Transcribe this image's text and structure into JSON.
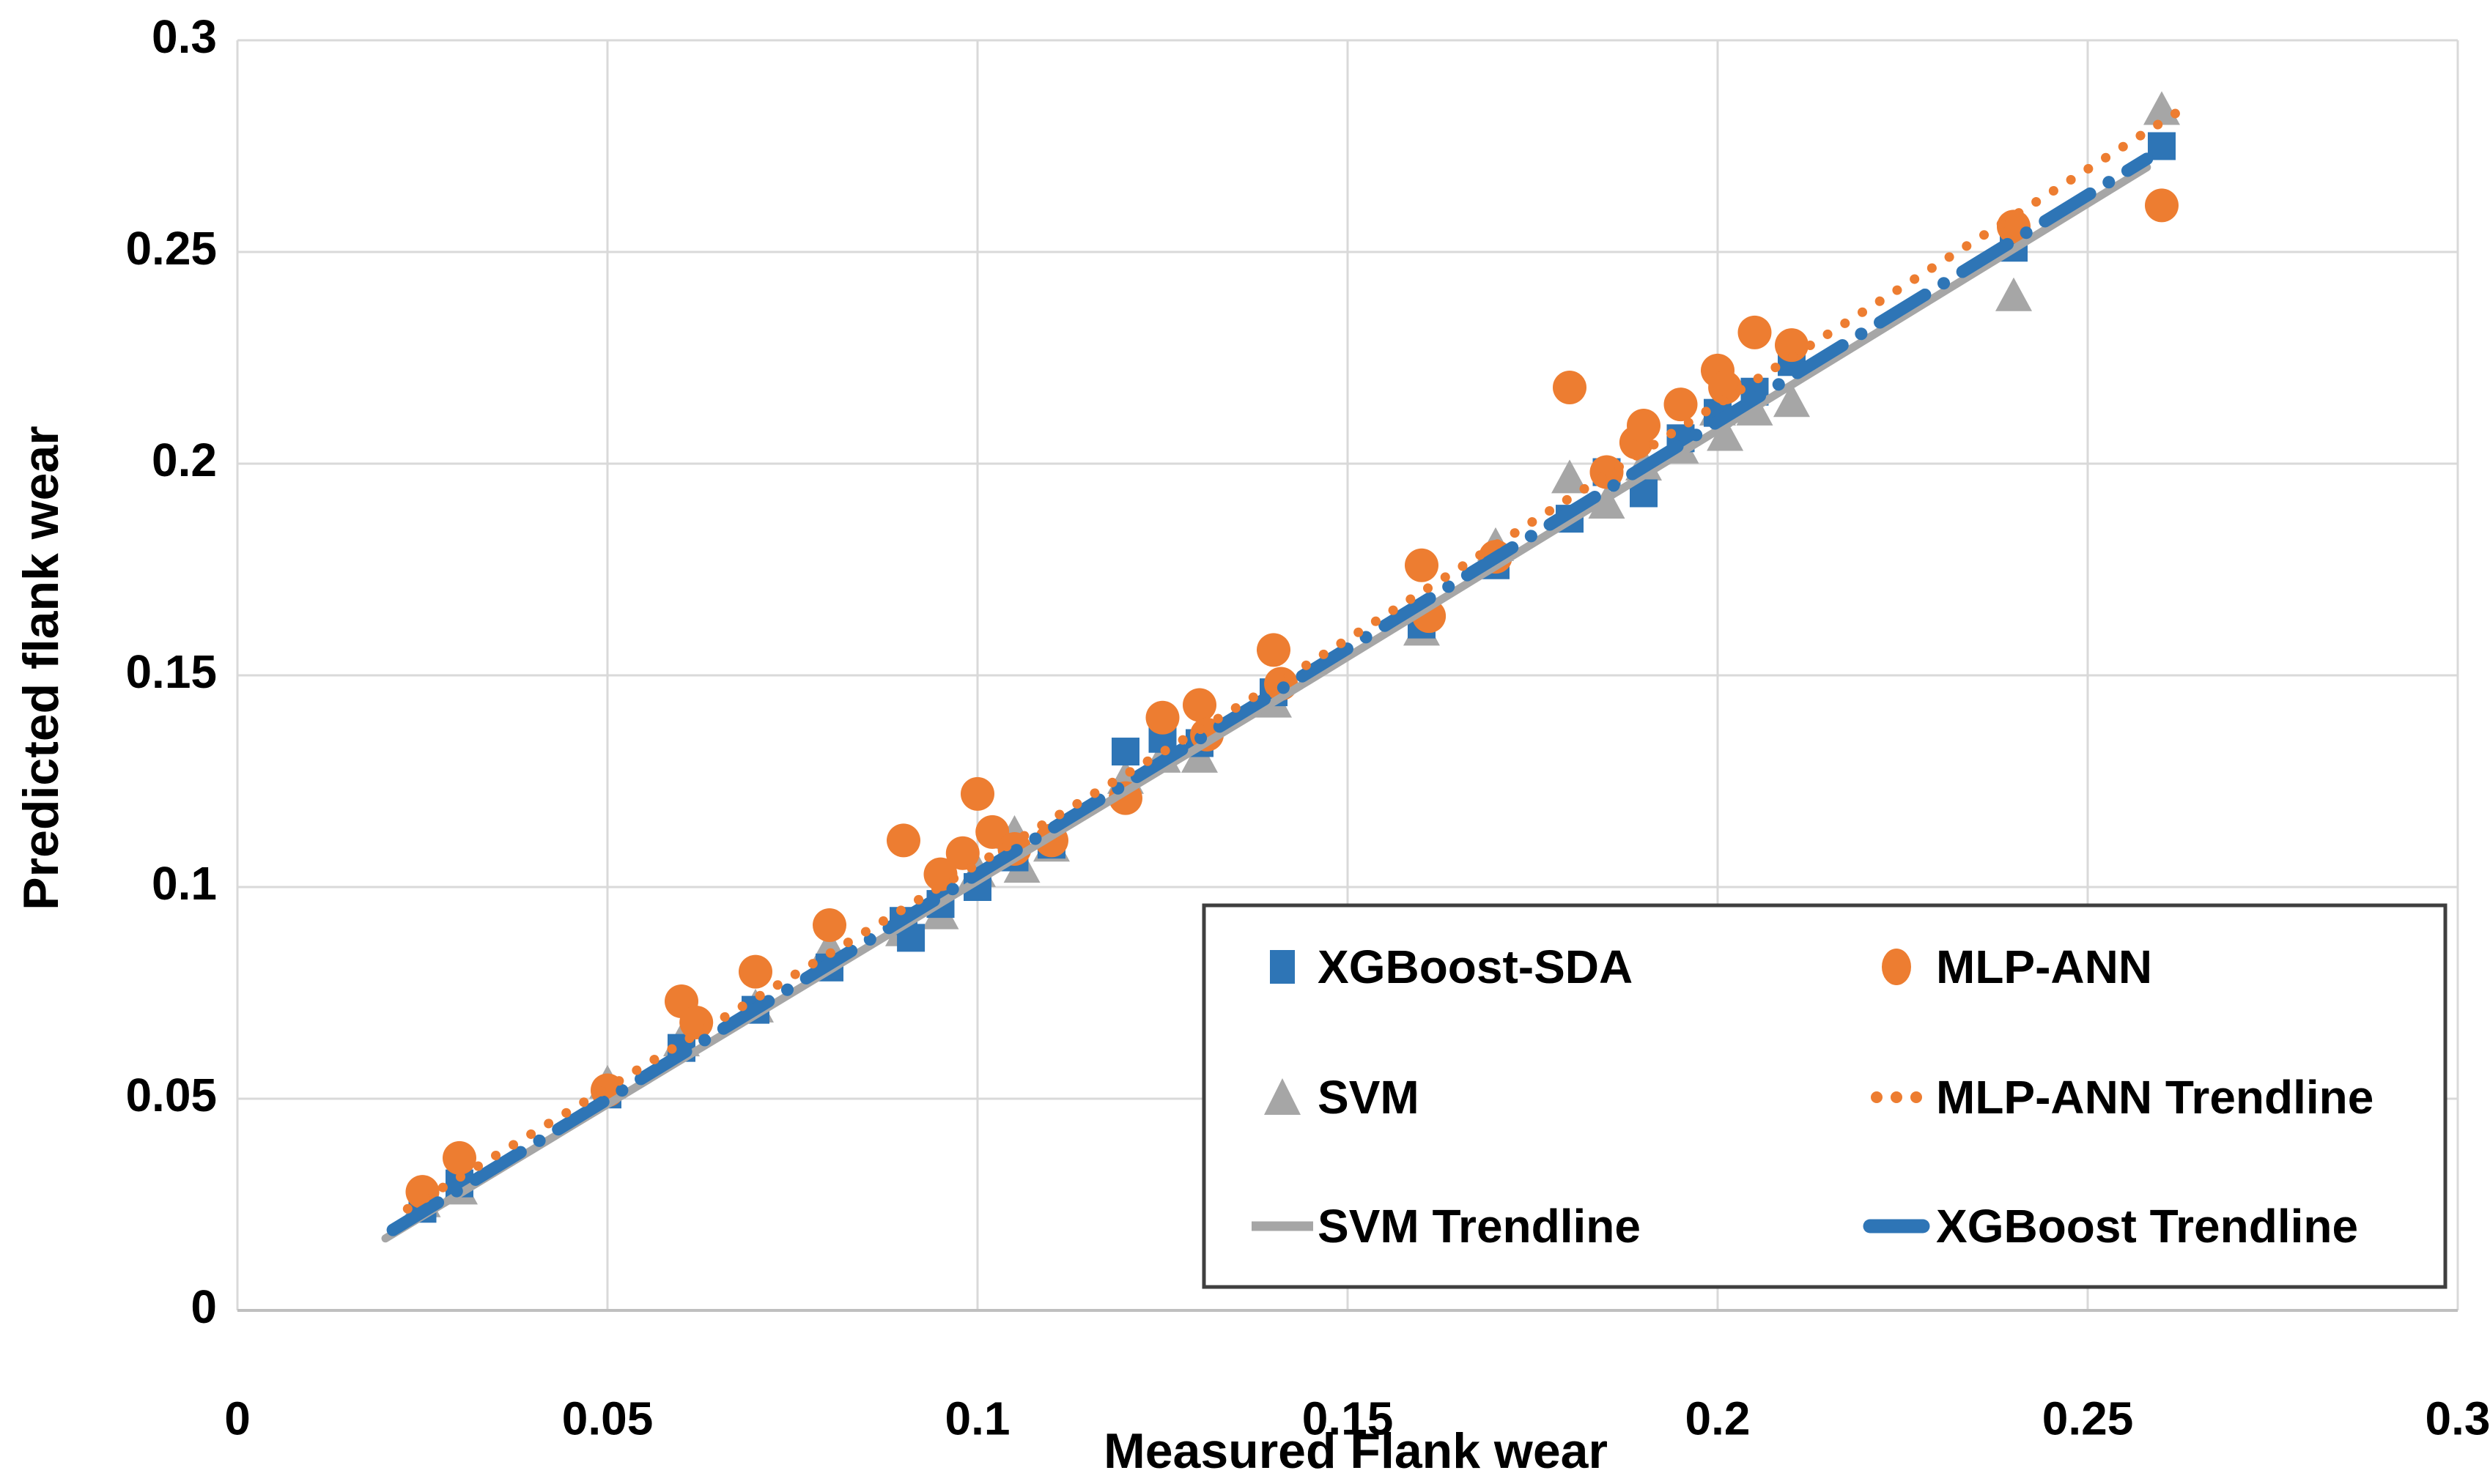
{
  "axes": {
    "x_title": "Measured Flank wear",
    "y_title": "Predicted flank wear",
    "x_ticks": [
      "0",
      "0.05",
      "0.1",
      "0.15",
      "0.2",
      "0.25",
      "0.3"
    ],
    "y_ticks": [
      "0",
      "0.05",
      "0.1",
      "0.15",
      "0.2",
      "0.25",
      "0.3"
    ]
  },
  "legend": {
    "items": [
      {
        "id": "xgboost-sda",
        "label": "XGBoost-SDA",
        "marker": "square",
        "color": "#2E75B6",
        "col": 0,
        "row": 0
      },
      {
        "id": "mlp-ann",
        "label": "MLP-ANN",
        "marker": "circle",
        "color": "#ED7D31",
        "col": 1,
        "row": 0
      },
      {
        "id": "svm",
        "label": "SVM",
        "marker": "triangle",
        "color": "#A6A6A6",
        "col": 0,
        "row": 1
      },
      {
        "id": "mlp-ann-trendline",
        "label": "MLP-ANN Trendline",
        "marker": "dotted-line",
        "color": "#ED7D31",
        "col": 1,
        "row": 1
      },
      {
        "id": "svm-trendline",
        "label": "SVM Trendline",
        "marker": "solid-line",
        "color": "#A6A6A6",
        "col": 0,
        "row": 2
      },
      {
        "id": "xgboost-trendline",
        "label": "XGBoost Trendline",
        "marker": "dash-line",
        "color": "#2E75B6",
        "col": 1,
        "row": 2
      }
    ]
  },
  "colors": {
    "blue": "#2E75B6",
    "orange": "#ED7D31",
    "gray": "#A6A6A6",
    "gridline": "#D9D9D9",
    "axis_line": "#BFBFBF",
    "legend_border": "#3F3F3F",
    "text": "#000000"
  },
  "chart_data": {
    "type": "scatter",
    "xlabel": "Measured Flank wear",
    "ylabel": "Predicted flank wear",
    "xlim": [
      0,
      0.3
    ],
    "ylim": [
      0,
      0.3
    ],
    "tick_step": 0.05,
    "grid": true,
    "legend_position": "inside-bottom-right",
    "series": [
      {
        "id": "svm",
        "name": "SVM",
        "marker": "triangle",
        "color": "#A6A6A6",
        "points": [
          [
            0.025,
            0.026
          ],
          [
            0.03,
            0.029
          ],
          [
            0.05,
            0.054
          ],
          [
            0.06,
            0.064
          ],
          [
            0.07,
            0.072
          ],
          [
            0.08,
            0.086
          ],
          [
            0.09,
            0.09
          ],
          [
            0.095,
            0.094
          ],
          [
            0.1,
            0.104
          ],
          [
            0.105,
            0.113
          ],
          [
            0.106,
            0.105
          ],
          [
            0.11,
            0.11
          ],
          [
            0.12,
            0.126
          ],
          [
            0.125,
            0.131
          ],
          [
            0.13,
            0.131
          ],
          [
            0.14,
            0.144
          ],
          [
            0.16,
            0.161
          ],
          [
            0.17,
            0.181
          ],
          [
            0.18,
            0.197
          ],
          [
            0.185,
            0.191
          ],
          [
            0.19,
            0.2
          ],
          [
            0.195,
            0.204
          ],
          [
            0.2,
            0.213
          ],
          [
            0.201,
            0.207
          ],
          [
            0.205,
            0.213
          ],
          [
            0.21,
            0.215
          ],
          [
            0.24,
            0.24
          ],
          [
            0.26,
            0.284
          ]
        ]
      },
      {
        "id": "xgboost-sda",
        "name": "XGBoost-SDA",
        "marker": "square",
        "color": "#2E75B6",
        "points": [
          [
            0.025,
            0.024
          ],
          [
            0.03,
            0.03
          ],
          [
            0.05,
            0.051
          ],
          [
            0.06,
            0.062
          ],
          [
            0.07,
            0.071
          ],
          [
            0.08,
            0.081
          ],
          [
            0.09,
            0.092
          ],
          [
            0.091,
            0.088
          ],
          [
            0.095,
            0.096
          ],
          [
            0.1,
            0.1
          ],
          [
            0.105,
            0.107
          ],
          [
            0.11,
            0.11
          ],
          [
            0.12,
            0.132
          ],
          [
            0.125,
            0.135
          ],
          [
            0.13,
            0.134
          ],
          [
            0.14,
            0.146
          ],
          [
            0.16,
            0.162
          ],
          [
            0.17,
            0.176
          ],
          [
            0.18,
            0.187
          ],
          [
            0.185,
            0.198
          ],
          [
            0.19,
            0.193
          ],
          [
            0.195,
            0.206
          ],
          [
            0.2,
            0.212
          ],
          [
            0.205,
            0.217
          ],
          [
            0.21,
            0.224
          ],
          [
            0.24,
            0.251
          ],
          [
            0.26,
            0.275
          ]
        ]
      },
      {
        "id": "mlp-ann",
        "name": "MLP-ANN",
        "marker": "circle",
        "color": "#ED7D31",
        "points": [
          [
            0.025,
            0.028
          ],
          [
            0.03,
            0.036
          ],
          [
            0.05,
            0.052
          ],
          [
            0.06,
            0.073
          ],
          [
            0.062,
            0.068
          ],
          [
            0.07,
            0.08
          ],
          [
            0.08,
            0.091
          ],
          [
            0.09,
            0.111
          ],
          [
            0.095,
            0.103
          ],
          [
            0.098,
            0.108
          ],
          [
            0.1,
            0.122
          ],
          [
            0.102,
            0.113
          ],
          [
            0.105,
            0.109
          ],
          [
            0.11,
            0.111
          ],
          [
            0.12,
            0.121
          ],
          [
            0.125,
            0.14
          ],
          [
            0.13,
            0.143
          ],
          [
            0.131,
            0.136
          ],
          [
            0.14,
            0.156
          ],
          [
            0.141,
            0.148
          ],
          [
            0.16,
            0.176
          ],
          [
            0.161,
            0.164
          ],
          [
            0.17,
            0.178
          ],
          [
            0.18,
            0.218
          ],
          [
            0.185,
            0.198
          ],
          [
            0.189,
            0.205
          ],
          [
            0.19,
            0.209
          ],
          [
            0.195,
            0.214
          ],
          [
            0.2,
            0.222
          ],
          [
            0.201,
            0.218
          ],
          [
            0.205,
            0.231
          ],
          [
            0.21,
            0.228
          ],
          [
            0.24,
            0.256
          ],
          [
            0.26,
            0.261
          ]
        ]
      }
    ],
    "trendlines": [
      {
        "id": "svm-trendline",
        "name": "SVM Trendline",
        "color": "#A6A6A6",
        "style": "solid",
        "width": 11,
        "points": [
          [
            0.02,
            0.017
          ],
          [
            0.145,
            0.149
          ],
          [
            0.258,
            0.27
          ]
        ]
      },
      {
        "id": "xgboost-trendline",
        "name": "XGBoost Trendline",
        "color": "#2E75B6",
        "style": "dash-dot",
        "width": 17,
        "points": [
          [
            0.021,
            0.019
          ],
          [
            0.145,
            0.151
          ],
          [
            0.258,
            0.272
          ]
        ]
      },
      {
        "id": "mlp-ann-trendline",
        "name": "MLP-ANN Trendline",
        "color": "#ED7D31",
        "style": "dotted",
        "width": 13,
        "points": [
          [
            0.023,
            0.024
          ],
          [
            0.145,
            0.153
          ],
          [
            0.263,
            0.284
          ]
        ]
      }
    ]
  }
}
